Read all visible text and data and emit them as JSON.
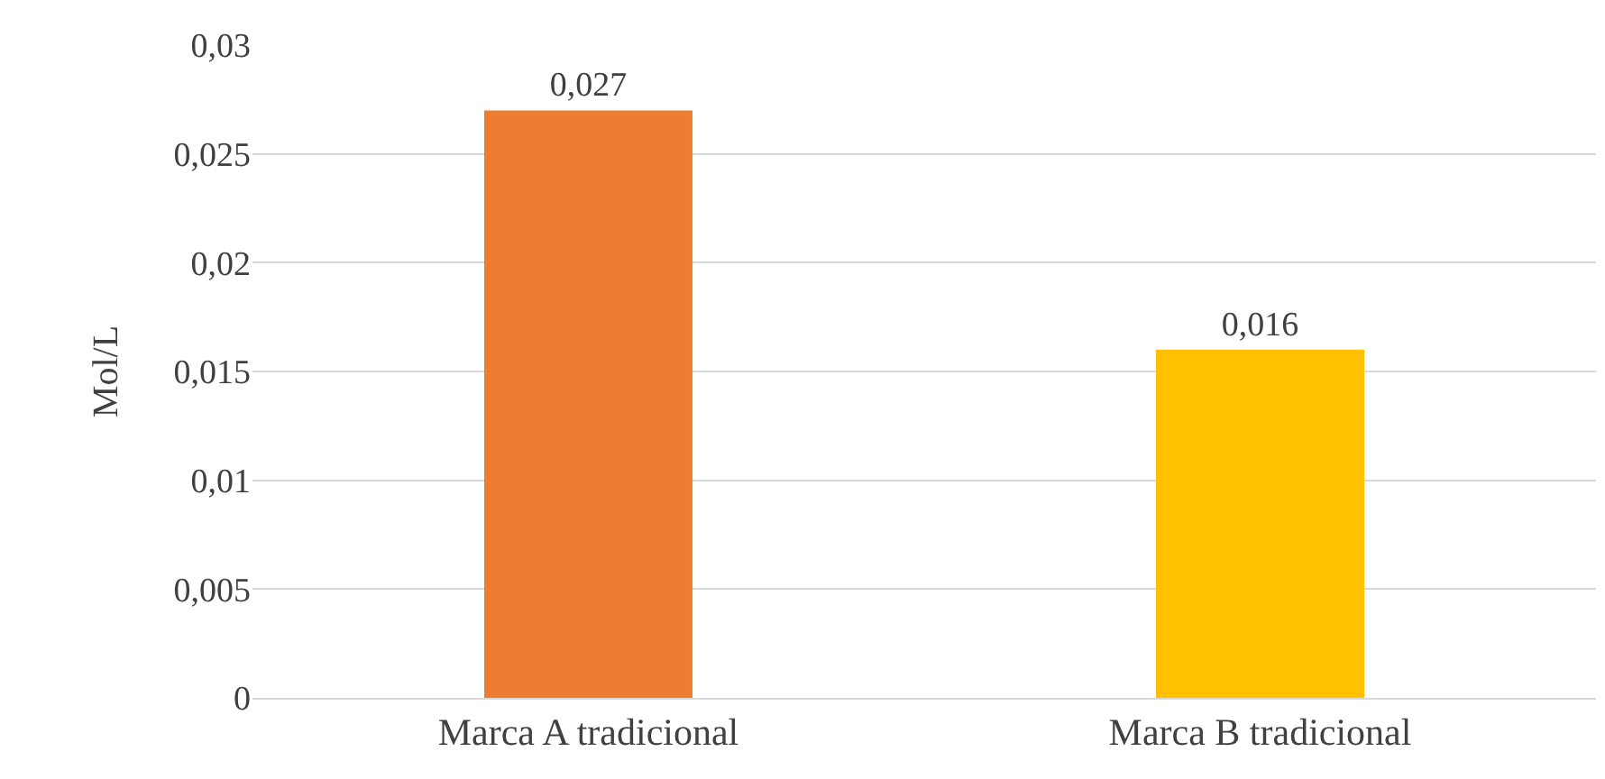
{
  "chart_data": {
    "type": "bar",
    "ylabel": "Mol/L",
    "categories": [
      "Marca A tradicional",
      "Marca B tradicional"
    ],
    "values": [
      0.027,
      0.016
    ],
    "colors": [
      "#ed7d31",
      "#ffc000"
    ],
    "value_labels": [
      "0,027",
      "0,016"
    ],
    "ylim": [
      0,
      0.03
    ],
    "yticks": [
      {
        "value": 0,
        "label": "0"
      },
      {
        "value": 0.005,
        "label": "0,005"
      },
      {
        "value": 0.01,
        "label": "0,01"
      },
      {
        "value": 0.015,
        "label": "0,015"
      },
      {
        "value": 0.02,
        "label": "0,02"
      },
      {
        "value": 0.025,
        "label": "0,025"
      },
      {
        "value": 0.03,
        "label": "0,03"
      }
    ],
    "grid": "y"
  }
}
